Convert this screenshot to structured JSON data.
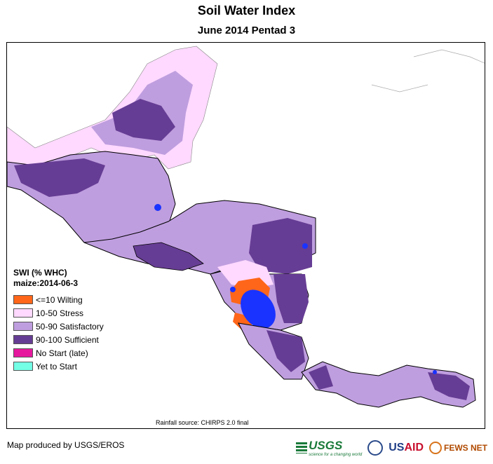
{
  "title": "Soil Water Index",
  "subtitle": "June 2014 Pentad 3",
  "legend": {
    "title": "SWI (% WHC)",
    "subtitle": "maize:2014-06-3",
    "items": [
      {
        "label": "<=10 Wilting",
        "color": "#ff6619"
      },
      {
        "label": "10-50 Stress",
        "color": "#ffd9ff"
      },
      {
        "label": "50-90 Satisfactory",
        "color": "#bf9edf"
      },
      {
        "label": "90-100 Sufficient",
        "color": "#663d94"
      },
      {
        "label": "No Start (late)",
        "color": "#e6199e"
      },
      {
        "label": "Yet to Start",
        "color": "#73ffe6"
      }
    ]
  },
  "source_note": "Rainfall source: CHIRPS 2.0 final",
  "credit": "Map produced by USGS/EROS",
  "logos": {
    "usgs": "USGS",
    "usgs_tagline": "science for a changing world",
    "usaid_a": "US",
    "usaid_b": "AID",
    "fews": "FEWS NET"
  },
  "colors": {
    "water": "#1a33ff",
    "border": "#000000",
    "admin": "#888888"
  }
}
